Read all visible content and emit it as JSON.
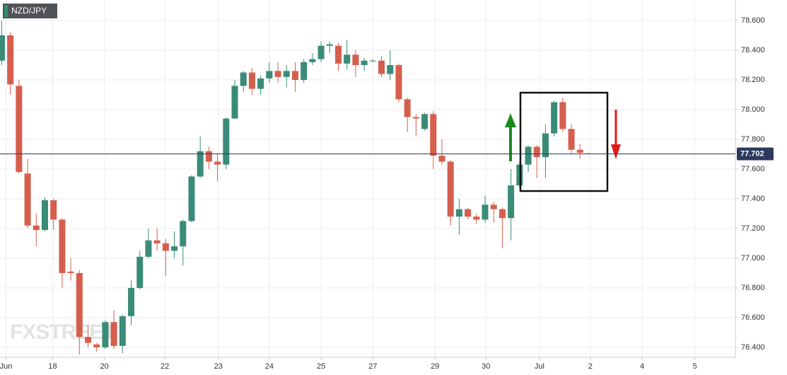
{
  "chart_data": {
    "type": "candlestick",
    "title": "NZD/JPY",
    "watermark": "FXSTREET",
    "up_color": "#3a8b77",
    "down_color": "#d65e4d",
    "grid": true,
    "current_price": {
      "value": 77.702,
      "label": "77.702"
    },
    "xlim": [
      -0.2,
      85
    ],
    "xticks": [
      {
        "value": 0.5,
        "label": "Jun"
      },
      {
        "value": 5.9,
        "label": "18"
      },
      {
        "value": 11.9,
        "label": "20"
      },
      {
        "value": 18.9,
        "label": "22"
      },
      {
        "value": 25.1,
        "label": "23"
      },
      {
        "value": 31,
        "label": "24"
      },
      {
        "value": 37,
        "label": "25"
      },
      {
        "value": 43,
        "label": "27"
      },
      {
        "value": 50.2,
        "label": "29"
      },
      {
        "value": 56.1,
        "label": "30"
      },
      {
        "value": 62.3,
        "label": "Jul"
      },
      {
        "value": 68.2,
        "label": "2"
      },
      {
        "value": 74.2,
        "label": "4"
      },
      {
        "value": 80.3,
        "label": "5"
      }
    ],
    "ylim": [
      76.333,
      78.738
    ],
    "yticks": [
      {
        "value": 76.4,
        "label": "76.400"
      },
      {
        "value": 76.6,
        "label": "76.600"
      },
      {
        "value": 76.8,
        "label": "76.800"
      },
      {
        "value": 77,
        "label": "77.000"
      },
      {
        "value": 77.2,
        "label": "77.200"
      },
      {
        "value": 77.4,
        "label": "77.400"
      },
      {
        "value": 77.6,
        "label": "77.600"
      },
      {
        "value": 77.8,
        "label": "77.800"
      },
      {
        "value": 78,
        "label": "78.000"
      },
      {
        "value": 78.2,
        "label": "78.200"
      },
      {
        "value": 78.4,
        "label": "78.400"
      },
      {
        "value": 78.6,
        "label": "78.600"
      }
    ],
    "open": [
      78.33,
      78.5,
      78.16,
      77.57,
      77.22,
      77.19,
      77.39,
      77.26,
      76.91,
      76.9,
      76.47,
      76.42,
      76.4,
      76.57,
      76.41,
      76.61,
      76.8,
      77.01,
      77.12,
      77.1,
      77.05,
      77.08,
      77.25,
      77.55,
      77.72,
      77.65,
      77.63,
      77.94,
      78.16,
      78.25,
      78.14,
      78.21,
      78.26,
      78.22,
      78.26,
      78.2,
      78.32,
      78.34,
      78.43,
      78.43,
      78.31,
      78.37,
      78.3,
      78.33,
      78.33,
      78.24,
      78.3,
      78.07,
      77.95,
      77.87,
      77.97,
      77.69,
      77.65,
      77.28,
      77.33,
      77.28,
      77.26,
      77.36,
      77.33,
      77.27,
      77.49,
      77.63,
      77.75,
      77.68,
      77.84,
      78.05,
      77.87,
      77.73,
      77.705
    ],
    "high": [
      78.6,
      78.52,
      78.2,
      77.67,
      77.3,
      77.41,
      77.4,
      77.27,
      77.0,
      76.92,
      76.55,
      76.43,
      76.58,
      76.65,
      76.62,
      76.85,
      77.05,
      77.2,
      77.2,
      77.13,
      77.18,
      77.26,
      77.56,
      77.82,
      77.75,
      77.7,
      77.95,
      78.2,
      78.26,
      78.28,
      78.23,
      78.32,
      78.32,
      78.3,
      78.32,
      78.34,
      78.38,
      78.46,
      78.46,
      78.45,
      78.47,
      78.4,
      78.35,
      78.34,
      78.36,
      78.4,
      78.31,
      78.08,
      77.97,
      77.98,
      77.99,
      77.8,
      77.66,
      77.4,
      77.34,
      77.3,
      77.42,
      77.38,
      77.34,
      77.6,
      77.65,
      77.76,
      77.76,
      77.9,
      78.06,
      78.08,
      77.9,
      77.77,
      77.71
    ],
    "low": [
      78.3,
      78.1,
      77.57,
      77.2,
      77.08,
      77.18,
      77.19,
      76.8,
      76.85,
      76.35,
      76.4,
      76.37,
      76.39,
      76.39,
      76.36,
      76.55,
      76.79,
      77.0,
      77.05,
      76.88,
      77.0,
      76.95,
      77.24,
      77.54,
      77.6,
      77.52,
      77.6,
      77.94,
      78.12,
      78.1,
      78.1,
      78.18,
      78.18,
      78.15,
      78.12,
      78.18,
      78.3,
      78.32,
      78.38,
      78.26,
      78.27,
      78.22,
      78.26,
      78.32,
      78.22,
      78.2,
      78.05,
      77.85,
      77.82,
      77.86,
      77.6,
      77.63,
      77.22,
      77.16,
      77.26,
      77.23,
      77.24,
      77.24,
      77.07,
      77.12,
      77.47,
      77.58,
      77.54,
      77.54,
      77.82,
      77.85,
      77.7,
      77.67,
      77.7
    ],
    "close": [
      78.5,
      78.17,
      77.58,
      77.22,
      77.19,
      77.39,
      77.26,
      76.9,
      76.9,
      76.47,
      76.43,
      76.4,
      76.57,
      76.41,
      76.61,
      76.8,
      77.01,
      77.12,
      77.1,
      77.05,
      77.08,
      77.25,
      77.55,
      77.72,
      77.65,
      77.63,
      77.94,
      78.16,
      78.25,
      78.14,
      78.21,
      78.26,
      78.22,
      78.26,
      78.2,
      78.32,
      78.34,
      78.43,
      78.44,
      78.31,
      78.37,
      78.3,
      78.33,
      78.33,
      78.24,
      78.3,
      78.07,
      77.95,
      77.94,
      77.97,
      77.69,
      77.65,
      77.28,
      77.33,
      77.28,
      77.26,
      77.36,
      77.33,
      77.27,
      77.49,
      77.63,
      77.75,
      77.68,
      77.84,
      78.05,
      77.87,
      77.73,
      77.71,
      77.702
    ]
  }
}
